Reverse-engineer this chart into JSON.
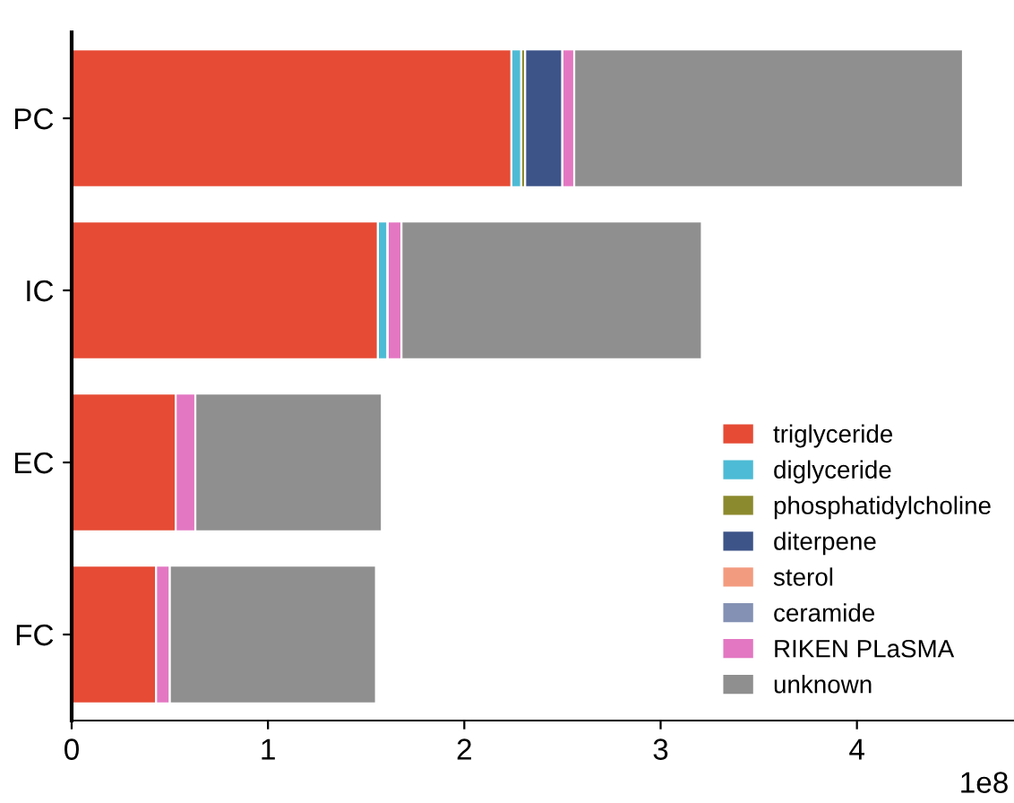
{
  "chart_data": {
    "type": "bar",
    "orientation": "horizontal",
    "stacked": true,
    "categories": [
      "PC",
      "IC",
      "EC",
      "FC"
    ],
    "series": [
      {
        "name": "triglyceride",
        "color": "#e64b35",
        "values": [
          2.24,
          1.56,
          0.53,
          0.43
        ]
      },
      {
        "name": "diglyceride",
        "color": "#4dbbd5",
        "values": [
          0.05,
          0.05,
          0,
          0
        ]
      },
      {
        "name": "phosphatidylcholine",
        "color": "#8c8a2e",
        "values": [
          0.02,
          0,
          0,
          0
        ]
      },
      {
        "name": "diterpene",
        "color": "#3c5488",
        "values": [
          0.19,
          0,
          0,
          0
        ]
      },
      {
        "name": "sterol",
        "color": "#f39b7f",
        "values": [
          null,
          0,
          0,
          0
        ]
      },
      {
        "name": "ceramide",
        "color": "#8491b4",
        "values": [
          null,
          0,
          0,
          0
        ]
      },
      {
        "name": "RIKEN PLaSMA",
        "color": "#e377c2",
        "values": [
          0.06,
          0.07,
          0.1,
          0.07
        ]
      },
      {
        "name": "unknown",
        "color": "#8f8f8f",
        "values": [
          1.98,
          1.53,
          0.95,
          1.05
        ]
      }
    ],
    "xlim": [
      0,
      4.8
    ],
    "xticks": [
      0,
      1,
      2,
      3,
      4
    ],
    "annotations": [
      "1e8"
    ],
    "grid": false,
    "legend": "bottom right"
  }
}
